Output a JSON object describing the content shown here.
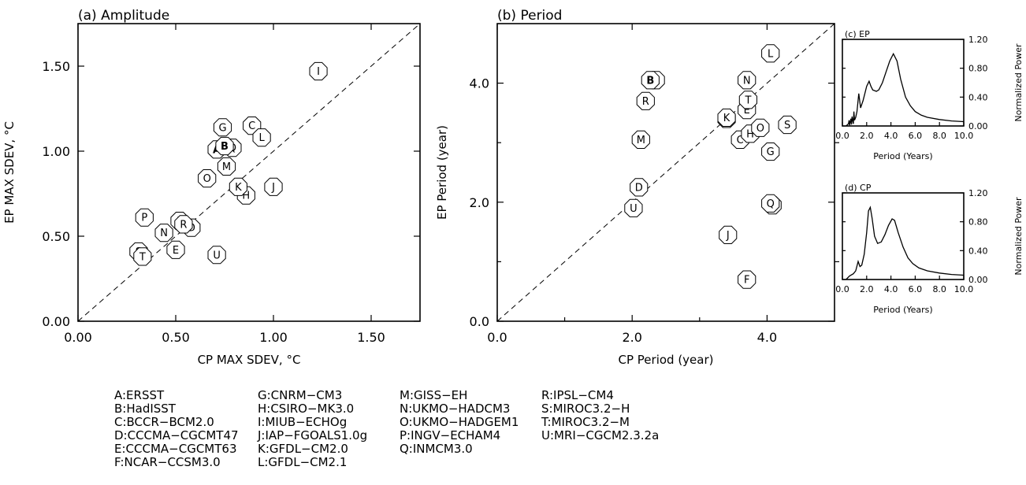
{
  "chart_data": [
    {
      "type": "scatter",
      "title": "(a) Amplitude",
      "xlabel": "CP MAX SDEV, °C",
      "ylabel": "EP MAX SDEV, °C",
      "xlim": [
        0,
        1.75
      ],
      "ylim": [
        0,
        1.75
      ],
      "xticks": [
        {
          "value": 0.0,
          "label": "0.00"
        },
        {
          "value": 0.5,
          "label": "0.50"
        },
        {
          "value": 1.0,
          "label": "1.00"
        },
        {
          "value": 1.5,
          "label": "1.50"
        }
      ],
      "yticks": [
        {
          "value": 0.0,
          "label": "0.00"
        },
        {
          "value": 0.5,
          "label": "0.50"
        },
        {
          "value": 1.0,
          "label": "1.00"
        },
        {
          "value": 1.5,
          "label": "1.50"
        }
      ],
      "reference_line": "1:1 dashed",
      "points": [
        {
          "label": "A",
          "x": 0.71,
          "y": 1.01,
          "bold": true
        },
        {
          "label": "B",
          "x": 0.75,
          "y": 1.03,
          "bold": true
        },
        {
          "label": "C",
          "x": 0.89,
          "y": 1.15
        },
        {
          "label": "D",
          "x": 0.58,
          "y": 0.55
        },
        {
          "label": "E",
          "x": 0.5,
          "y": 0.42
        },
        {
          "label": "F",
          "x": 0.52,
          "y": 0.59
        },
        {
          "label": "G",
          "x": 0.74,
          "y": 1.14
        },
        {
          "label": "H",
          "x": 0.86,
          "y": 0.74
        },
        {
          "label": "I",
          "x": 1.23,
          "y": 1.47
        },
        {
          "label": "J",
          "x": 1.0,
          "y": 0.79
        },
        {
          "label": "K",
          "x": 0.82,
          "y": 0.79
        },
        {
          "label": "L",
          "x": 0.94,
          "y": 1.08
        },
        {
          "label": "M",
          "x": 0.76,
          "y": 0.91
        },
        {
          "label": "N",
          "x": 0.44,
          "y": 0.52
        },
        {
          "label": "O",
          "x": 0.66,
          "y": 0.84
        },
        {
          "label": "P",
          "x": 0.34,
          "y": 0.61
        },
        {
          "label": "Q",
          "x": 0.79,
          "y": 1.02
        },
        {
          "label": "R",
          "x": 0.54,
          "y": 0.57
        },
        {
          "label": "S",
          "x": 0.31,
          "y": 0.41
        },
        {
          "label": "T",
          "x": 0.33,
          "y": 0.38
        },
        {
          "label": "U",
          "x": 0.71,
          "y": 0.39
        }
      ]
    },
    {
      "type": "scatter",
      "title": "(b) Period",
      "xlabel": "CP Period (year)",
      "ylabel": "EP Period (year)",
      "xlim": [
        0,
        5
      ],
      "ylim": [
        0,
        5
      ],
      "xticks": [
        {
          "value": 0,
          "label": "0.0"
        },
        {
          "value": 2,
          "label": "2.0"
        },
        {
          "value": 4,
          "label": "4.0"
        }
      ],
      "yticks": [
        {
          "value": 0,
          "label": "0.0"
        },
        {
          "value": 2,
          "label": "2.0"
        },
        {
          "value": 4,
          "label": "4.0"
        }
      ],
      "minor_ticks": [
        1,
        3
      ],
      "reference_line": "1:1 dashed",
      "points": [
        {
          "label": "A",
          "x": 2.35,
          "y": 4.05,
          "bold": true
        },
        {
          "label": "B",
          "x": 2.27,
          "y": 4.05,
          "bold": true
        },
        {
          "label": "C",
          "x": 3.6,
          "y": 3.05
        },
        {
          "label": "D",
          "x": 2.1,
          "y": 2.25
        },
        {
          "label": "E",
          "x": 3.7,
          "y": 3.55
        },
        {
          "label": "F",
          "x": 3.7,
          "y": 0.7
        },
        {
          "label": "G",
          "x": 4.05,
          "y": 2.85
        },
        {
          "label": "H",
          "x": 3.75,
          "y": 3.15
        },
        {
          "label": "I",
          "x": 3.4,
          "y": 3.4
        },
        {
          "label": "J",
          "x": 3.42,
          "y": 1.45
        },
        {
          "label": "K",
          "x": 3.4,
          "y": 3.42
        },
        {
          "label": "L",
          "x": 4.05,
          "y": 4.5
        },
        {
          "label": "M",
          "x": 2.13,
          "y": 3.05
        },
        {
          "label": "N",
          "x": 3.7,
          "y": 4.05
        },
        {
          "label": "O",
          "x": 3.9,
          "y": 3.25
        },
        {
          "label": "P",
          "x": 4.08,
          "y": 1.95
        },
        {
          "label": "Q",
          "x": 4.05,
          "y": 1.98
        },
        {
          "label": "R",
          "x": 2.2,
          "y": 3.7
        },
        {
          "label": "S",
          "x": 4.3,
          "y": 3.3
        },
        {
          "label": "T",
          "x": 3.72,
          "y": 3.72
        },
        {
          "label": "U",
          "x": 2.02,
          "y": 1.9
        }
      ]
    },
    {
      "type": "line",
      "title": "(c) EP",
      "xlabel": "Period (Years)",
      "ylabel": "Normalized Power",
      "xlim": [
        0,
        10
      ],
      "ylim": [
        0,
        1.2
      ],
      "xticks": [
        {
          "value": 0,
          "label": "0.0"
        },
        {
          "value": 2,
          "label": "2.0"
        },
        {
          "value": 4,
          "label": "4.0"
        },
        {
          "value": 6,
          "label": "6.0"
        },
        {
          "value": 8,
          "label": "8.0"
        },
        {
          "value": 10,
          "label": "10.0"
        }
      ],
      "yticks": [
        {
          "value": 0,
          "label": "0.00"
        },
        {
          "value": 0.4,
          "label": "0.40"
        },
        {
          "value": 0.8,
          "label": "0.80"
        },
        {
          "value": 1.2,
          "label": "1.20"
        }
      ],
      "x": [
        0.3,
        0.5,
        0.55,
        0.6,
        0.7,
        0.75,
        0.8,
        0.9,
        0.95,
        1.0,
        1.1,
        1.2,
        1.35,
        1.5,
        1.6,
        1.7,
        1.85,
        2.0,
        2.2,
        2.35,
        2.5,
        2.8,
        3.0,
        3.3,
        3.6,
        3.9,
        4.2,
        4.5,
        4.8,
        5.2,
        5.6,
        6.0,
        6.5,
        7.0,
        8.0,
        9.0,
        10.0
      ],
      "y": [
        0.0,
        0.03,
        0.08,
        0.01,
        0.1,
        0.02,
        0.13,
        0.03,
        0.2,
        0.08,
        0.12,
        0.2,
        0.45,
        0.25,
        0.3,
        0.35,
        0.45,
        0.55,
        0.62,
        0.55,
        0.5,
        0.48,
        0.5,
        0.6,
        0.75,
        0.9,
        1.0,
        0.9,
        0.65,
        0.4,
        0.28,
        0.2,
        0.15,
        0.12,
        0.09,
        0.07,
        0.06
      ]
    },
    {
      "type": "line",
      "title": "(d) CP",
      "xlabel": "Period (Years)",
      "ylabel": "Normalized Power",
      "xlim": [
        0,
        10
      ],
      "ylim": [
        0,
        1.2
      ],
      "xticks": [
        {
          "value": 0,
          "label": "0.0"
        },
        {
          "value": 2,
          "label": "2.0"
        },
        {
          "value": 4,
          "label": "4.0"
        },
        {
          "value": 6,
          "label": "6.0"
        },
        {
          "value": 8,
          "label": "8.0"
        },
        {
          "value": 10,
          "label": "10.0"
        }
      ],
      "yticks": [
        {
          "value": 0,
          "label": "0.00"
        },
        {
          "value": 0.4,
          "label": "0.40"
        },
        {
          "value": 0.8,
          "label": "0.80"
        },
        {
          "value": 1.2,
          "label": "1.20"
        }
      ],
      "x": [
        0.3,
        0.6,
        0.9,
        1.1,
        1.3,
        1.45,
        1.6,
        1.8,
        2.0,
        2.15,
        2.3,
        2.45,
        2.65,
        2.9,
        3.2,
        3.5,
        3.8,
        4.1,
        4.3,
        4.6,
        5.0,
        5.4,
        5.8,
        6.3,
        7.0,
        8.0,
        9.0,
        10.0
      ],
      "y": [
        0.0,
        0.05,
        0.08,
        0.12,
        0.25,
        0.18,
        0.2,
        0.35,
        0.65,
        0.95,
        1.0,
        0.85,
        0.6,
        0.5,
        0.52,
        0.62,
        0.75,
        0.84,
        0.82,
        0.65,
        0.45,
        0.3,
        0.22,
        0.16,
        0.12,
        0.09,
        0.07,
        0.06
      ]
    }
  ],
  "legend": {
    "columns": [
      [
        "A:ERSST",
        "B:HadISST",
        "C:BCCR−BCM2.0",
        "D:CCCMA−CGCMT47",
        "E:CCCMA−CGCMT63",
        "F:NCAR−CCSM3.0"
      ],
      [
        "G:CNRM−CM3",
        "H:CSIRO−MK3.0",
        "I:MIUB−ECHOg",
        "J:IAP−FGOALS1.0g",
        "K:GFDL−CM2.0",
        "L:GFDL−CM2.1"
      ],
      [
        "M:GISS−EH",
        "N:UKMO−HADCM3",
        "O:UKMO−HADGEM1",
        "P:INGV−ECHAM4",
        "Q:INMCM3.0"
      ],
      [
        "R:IPSL−CM4",
        "S:MIROC3.2−H",
        "T:MIROC3.2−M",
        "U:MRI−CGCM2.3.2a"
      ]
    ]
  }
}
